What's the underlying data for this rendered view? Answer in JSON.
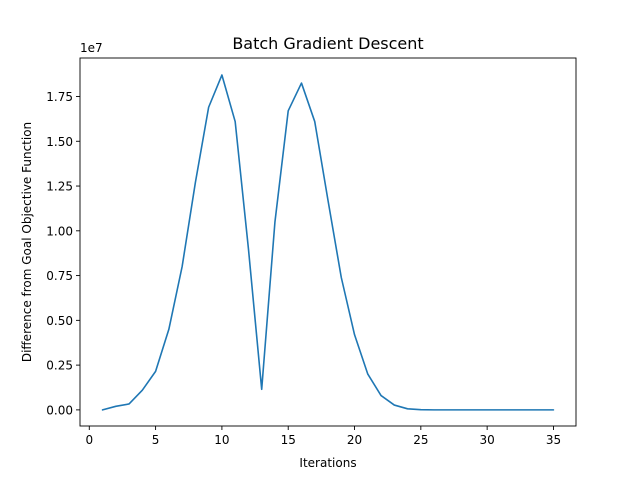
{
  "chart_data": {
    "type": "line",
    "title": "Batch Gradient Descent",
    "xlabel": "Iterations",
    "ylabel": "Difference from Goal Objective Function",
    "y_offset_label": "1e7",
    "y_scale": 10000000,
    "xlim": [
      -0.7,
      36.7
    ],
    "ylim": [
      -900000,
      19650000
    ],
    "grid": false,
    "legend": "none",
    "line_color": "#1f77b4",
    "x_ticks": [
      0,
      5,
      10,
      15,
      20,
      25,
      30,
      35
    ],
    "x_tick_labels": [
      "0",
      "5",
      "10",
      "15",
      "20",
      "25",
      "30",
      "35"
    ],
    "y_ticks": [
      0,
      2500000,
      5000000,
      7500000,
      10000000,
      12500000,
      15000000,
      17500000
    ],
    "y_tick_labels": [
      "0.00",
      "0.25",
      "0.50",
      "0.75",
      "1.00",
      "1.25",
      "1.50",
      "1.75"
    ],
    "x": [
      1,
      2,
      3,
      4,
      5,
      6,
      7,
      8,
      9,
      10,
      11,
      12,
      13,
      14,
      15,
      16,
      17,
      18,
      19,
      20,
      21,
      22,
      23,
      24,
      25,
      26,
      27,
      28,
      29,
      30,
      31,
      32,
      33,
      34,
      35
    ],
    "series": [
      {
        "values": [
          0,
          200000,
          330000,
          1100000,
          2150000,
          4500000,
          8000000,
          12700000,
          16900000,
          18700000,
          16100000,
          9000000,
          1150000,
          10500000,
          16700000,
          18250000,
          16100000,
          11700000,
          7400000,
          4200000,
          2000000,
          800000,
          270000,
          60000,
          10000,
          0,
          0,
          0,
          0,
          0,
          0,
          0,
          0,
          0,
          0
        ]
      }
    ]
  }
}
